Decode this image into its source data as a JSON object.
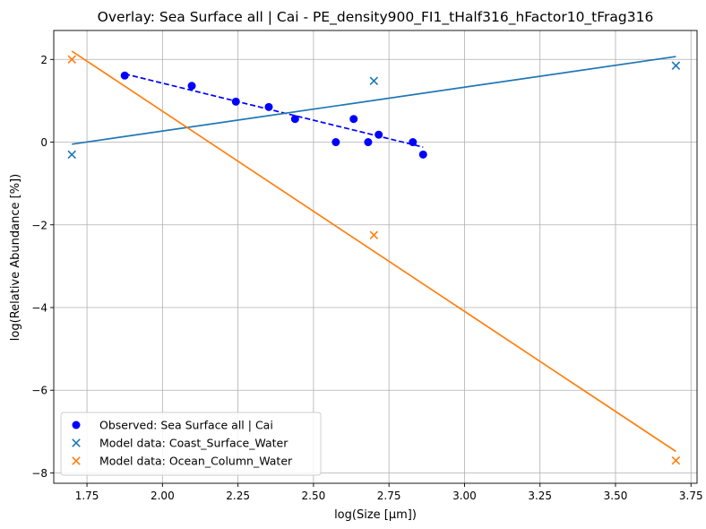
{
  "chart_data": {
    "type": "scatter",
    "title": "Overlay: Sea Surface all | Cai - PE_density900_FI1_tHalf316_hFactor10_tFrag316",
    "xlabel": "log(Size [µm])",
    "ylabel": "log(Relative Abundance [%])",
    "xlim": [
      1.64,
      3.77
    ],
    "ylim": [
      -8.25,
      2.7
    ],
    "xticks": [
      1.75,
      2.0,
      2.25,
      2.5,
      2.75,
      3.0,
      3.25,
      3.5,
      3.75
    ],
    "xtick_labels": [
      "1.75",
      "2.00",
      "2.25",
      "2.50",
      "2.75",
      "3.00",
      "3.25",
      "3.50",
      "3.75"
    ],
    "yticks": [
      -8,
      -6,
      -4,
      -2,
      0,
      2
    ],
    "ytick_labels": [
      "−8",
      "−6",
      "−4",
      "−2",
      "0",
      "2"
    ],
    "grid": true,
    "legend_position": "lower-left",
    "series": [
      {
        "name": "Observed: Sea Surface all | Cai",
        "kind": "points",
        "marker": "circle",
        "color": "#0000ff",
        "x": [
          1.875,
          2.097,
          2.243,
          2.352,
          2.439,
          2.574,
          2.633,
          2.681,
          2.716,
          2.829,
          2.863
        ],
        "y": [
          1.61,
          1.36,
          0.98,
          0.85,
          0.56,
          0.0,
          0.56,
          0.0,
          0.18,
          0.0,
          -0.3
        ]
      },
      {
        "name": "",
        "kind": "fit-line",
        "style": "dashed",
        "color": "#0000ff",
        "x": [
          1.875,
          2.863
        ],
        "y": [
          1.65,
          -0.12
        ]
      },
      {
        "name": "Model data: Coast_Surface_Water",
        "kind": "points",
        "marker": "x",
        "color": "#1f77b4",
        "x": [
          1.7,
          2.7,
          3.7
        ],
        "y": [
          -0.3,
          1.48,
          1.85
        ]
      },
      {
        "name": "",
        "kind": "fit-line",
        "style": "solid",
        "color": "#1f77b4",
        "x": [
          1.7,
          3.7
        ],
        "y": [
          -0.05,
          2.07
        ]
      },
      {
        "name": "Model data: Ocean_Column_Water",
        "kind": "points",
        "marker": "x",
        "color": "#ff7f0e",
        "x": [
          1.7,
          2.7,
          3.7
        ],
        "y": [
          2.0,
          -2.25,
          -7.7
        ]
      },
      {
        "name": "",
        "kind": "fit-line",
        "style": "solid",
        "color": "#ff7f0e",
        "x": [
          1.7,
          3.7
        ],
        "y": [
          2.2,
          -7.48
        ]
      }
    ]
  }
}
